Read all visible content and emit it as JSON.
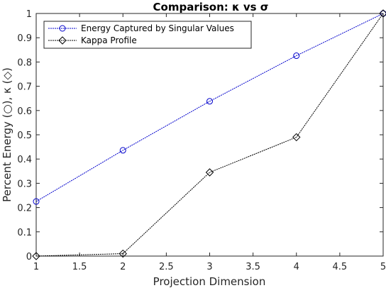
{
  "chart_data": {
    "type": "line",
    "title": "Comparison: κ vs σ",
    "xlabel": "Projection Dimension",
    "ylabel": "Percent Energy (○), κ (◇)",
    "xlim": [
      1,
      5
    ],
    "ylim": [
      0,
      1
    ],
    "x_ticks": [
      "1",
      "1.5",
      "2",
      "2.5",
      "3",
      "3.5",
      "4",
      "4.5",
      "5"
    ],
    "y_ticks": [
      "0",
      "0.1",
      "0.2",
      "0.3",
      "0.4",
      "0.5",
      "0.6",
      "0.7",
      "0.8",
      "0.9",
      "1"
    ],
    "grid": false,
    "legend_position": "top-left",
    "x": [
      1,
      2,
      3,
      4,
      5
    ],
    "series": [
      {
        "name": "Energy Captured by Singular Values",
        "values": [
          0.225,
          0.436,
          0.638,
          0.826,
          1.0
        ],
        "color": "#0000cc",
        "marker": "circle"
      },
      {
        "name": "Kappa Profile",
        "values": [
          0.0,
          0.01,
          0.345,
          0.49,
          1.0
        ],
        "color": "#000000",
        "marker": "diamond"
      }
    ]
  }
}
